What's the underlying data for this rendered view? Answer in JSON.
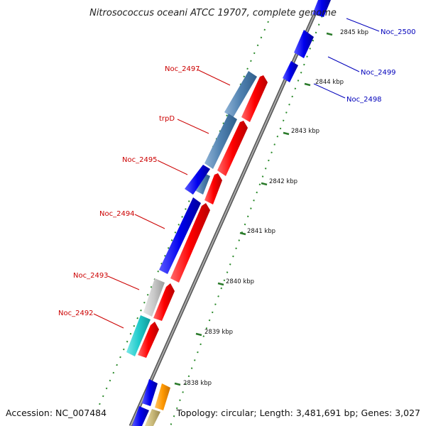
{
  "title": "Nitrosococcus oceani ATCC 19707, complete genome",
  "footer": {
    "accession": "Accession: NC_007484",
    "topology": "Topology: circular; Length: 3,481,691 bp; Genes: 3,027"
  },
  "ticks": [
    {
      "id": "2838",
      "label": "2838 kbp"
    },
    {
      "id": "2839",
      "label": "2839 kbp"
    },
    {
      "id": "2840",
      "label": "2840 kbp"
    },
    {
      "id": "2841",
      "label": "2841 kbp"
    },
    {
      "id": "2842",
      "label": "2842 kbp"
    },
    {
      "id": "2843",
      "label": "2843 kbp"
    },
    {
      "id": "2844",
      "label": "2844 kbp"
    },
    {
      "id": "2845",
      "label": "2845 kbp"
    }
  ],
  "gene_labels": {
    "noc_2500": "Noc_2500",
    "noc_2499": "Noc_2499",
    "noc_2498": "Noc_2498",
    "noc_2497": "Noc_2497",
    "trpd": "trpD",
    "noc_2495": "Noc_2495",
    "noc_2494": "Noc_2494",
    "noc_2493": "Noc_2493",
    "noc_2492": "Noc_2492"
  },
  "colors": {
    "cds": "#ff0000",
    "blue_feature": "#0000ee",
    "steel_feature": "#4f81b0",
    "grey_feature": "#c8c8c8",
    "cyan_feature": "#22cccc",
    "orange_feature": "#ff9900",
    "tan_feature": "#c8b878",
    "backbone": "#888888",
    "gc_skew": "#2a8a2a"
  }
}
